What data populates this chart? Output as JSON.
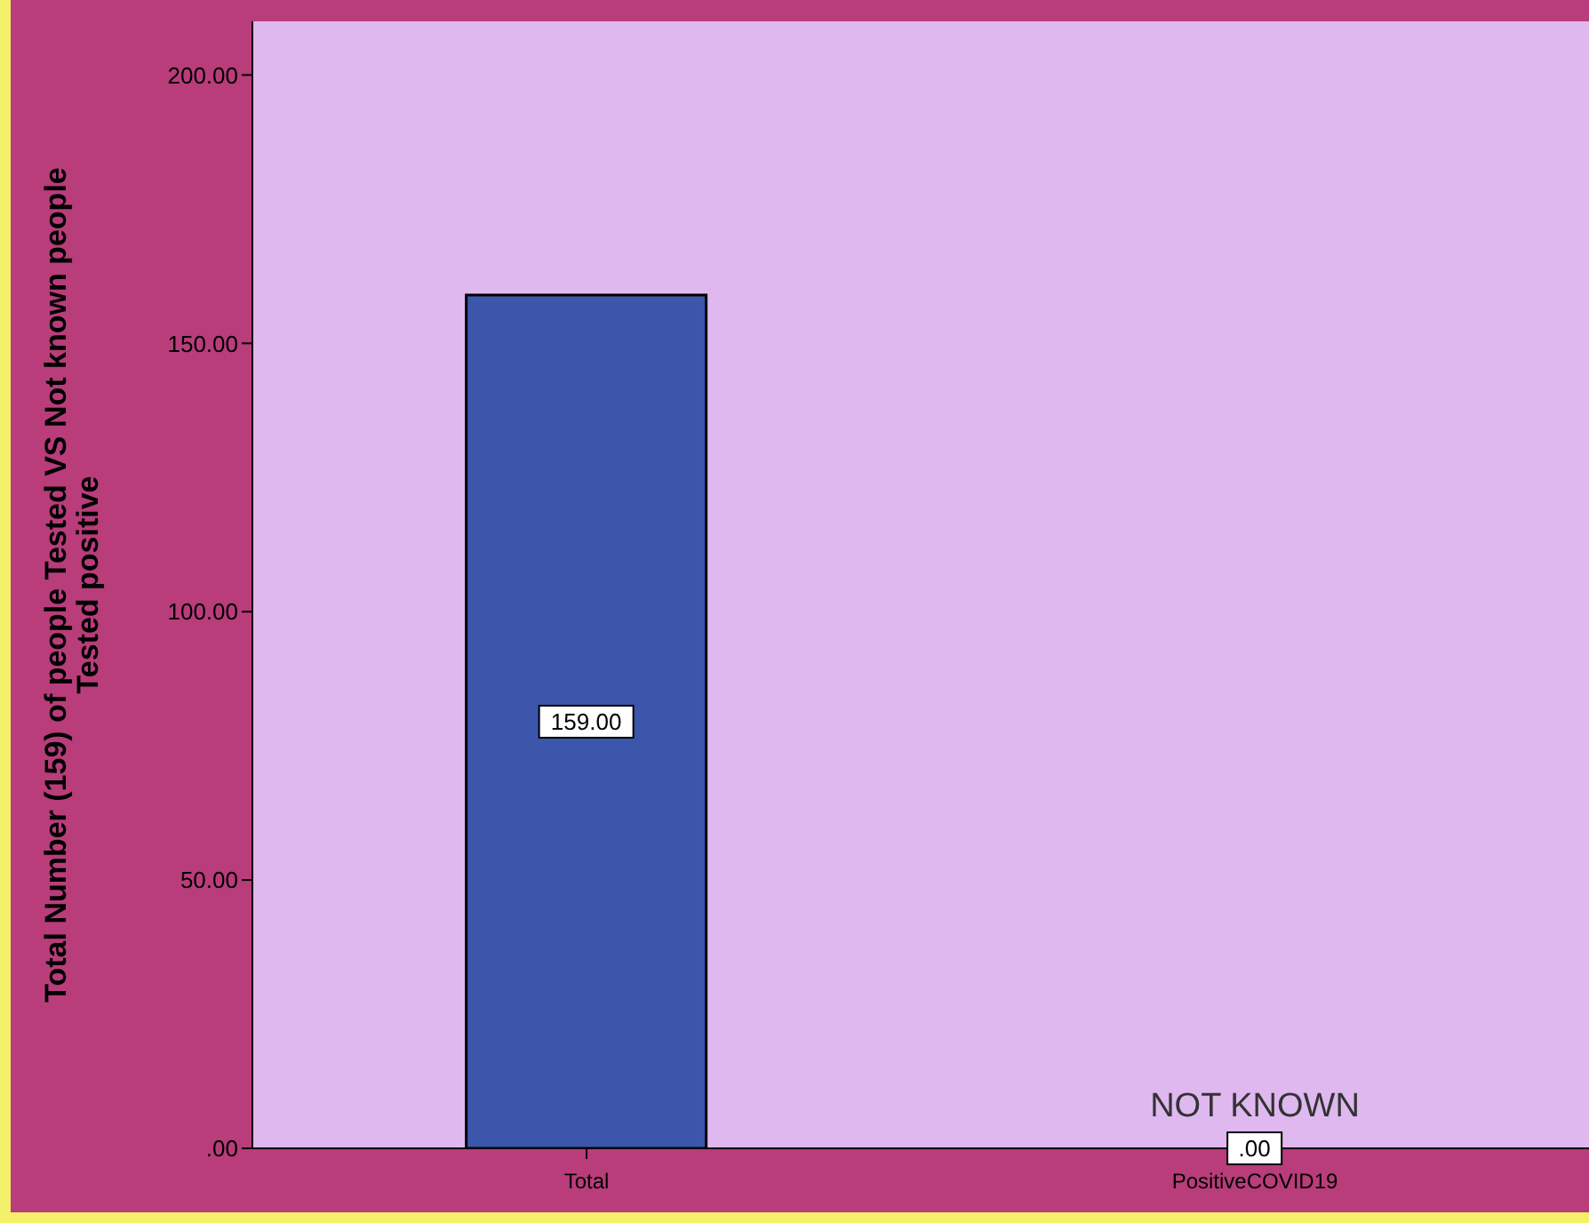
{
  "chart_data": {
    "type": "bar",
    "ylabel": "Total Number (159) of people Tested VS Not known people Tested positive",
    "categories": [
      "Total",
      "PositiveCOVID19"
    ],
    "values": [
      159,
      0
    ],
    "value_labels": [
      "159.00",
      ".00"
    ],
    "color": "#3c56ab",
    "ylim": [
      0,
      210
    ],
    "yticks": [
      {
        "value": 0,
        "label": ".00"
      },
      {
        "value": 50,
        "label": "50.00"
      },
      {
        "value": 100,
        "label": "100.00"
      },
      {
        "value": 150,
        "label": "150.00"
      },
      {
        "value": 200,
        "label": "200.00"
      }
    ],
    "annotations": [
      {
        "text": "NOT KNOWN",
        "x": "PositiveCOVID19",
        "y": 0
      }
    ],
    "grid": false,
    "legend": false
  }
}
